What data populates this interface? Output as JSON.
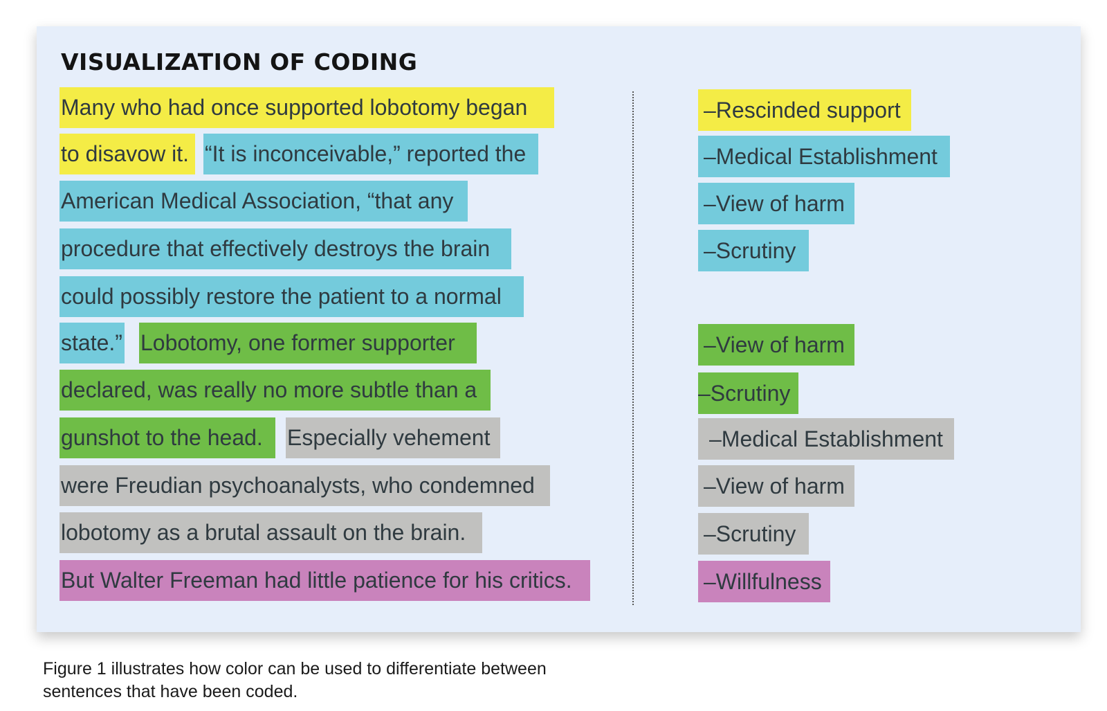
{
  "figure": {
    "title": "VISUALIZATION OF CODING",
    "colors": {
      "yellow": "#f4ec46",
      "blue": "#74cbdc",
      "green": "#6fbd47",
      "gray": "#c1c1bf",
      "pink": "#c983bc",
      "panel_background": "#e6eefa"
    },
    "text_lines": [
      "Many who had once supported lobotomy began",
      "to disavow it.",
      "“It is inconceivable,” reported the",
      "American Medical Association, “that any",
      "procedure that effectively destroys the brain",
      "could possibly restore the patient to a normal",
      "state.”",
      "Lobotomy, one former supporter",
      "declared, was really no more subtle than a",
      "gunshot to the head.",
      "Especially vehement",
      "were Freudian psychoanalysts, who condemned",
      "lobotomy as a brutal assault on the brain.",
      "But Walter Freeman had little patience for his critics."
    ],
    "codes": [
      "–Rescinded support",
      "–Medical Establishment",
      "–View of harm",
      "–Scrutiny",
      "–View of harm",
      "–Scrutiny",
      "–Medical Establishment",
      "–View of harm",
      "–Scrutiny",
      "–Willfulness"
    ]
  },
  "caption": "Figure 1 illustrates how color can be used to differentiate between sentences that have been coded."
}
